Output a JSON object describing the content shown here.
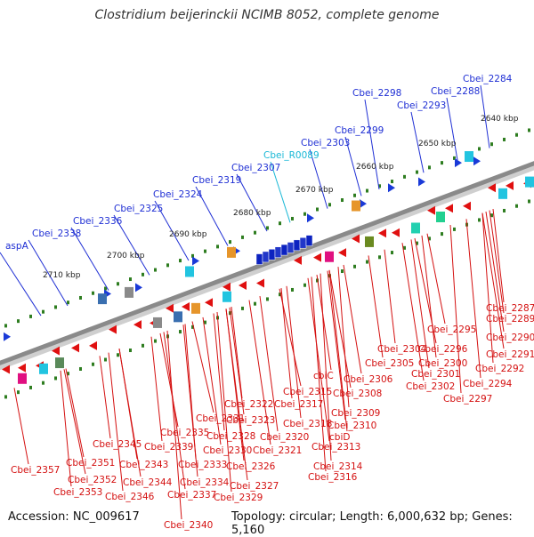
{
  "title": "Clostridium beijerinckii NCIMB 8052, complete genome",
  "footer": {
    "accession": "Accession: NC_009617",
    "summary": "Topology: circular; Length: 6,000,632 bp; Genes: 5,160"
  },
  "kbp_labels": [
    "2640 kbp",
    "2650 kbp",
    "2660 kbp",
    "2670 kbp",
    "2680 kbp",
    "2690 kbp",
    "2700 kbp",
    "2710 kbp"
  ],
  "forward_labels": [
    {
      "text": "Cbei_2284",
      "color": "blue"
    },
    {
      "text": "Cbei_2288",
      "color": "blue"
    },
    {
      "text": "Cbei_2293",
      "color": "blue"
    },
    {
      "text": "Cbei_2298",
      "color": "blue"
    },
    {
      "text": "Cbei_2299",
      "color": "blue"
    },
    {
      "text": "Cbei_2303",
      "color": "blue"
    },
    {
      "text": "Cbei_R0089",
      "color": "cyan"
    },
    {
      "text": "Cbei_2307",
      "color": "blue"
    },
    {
      "text": "Cbei_2319",
      "color": "blue"
    },
    {
      "text": "Cbei_2324",
      "color": "blue"
    },
    {
      "text": "Cbei_2325",
      "color": "blue"
    },
    {
      "text": "Cbei_2336",
      "color": "blue"
    },
    {
      "text": "Cbei_2338",
      "color": "blue"
    },
    {
      "text": "aspA",
      "color": "blue"
    }
  ],
  "reverse_labels": [
    "Cbei_2287",
    "Cbei_2289",
    "Cbei_2290",
    "Cbei_2291",
    "Cbei_2292",
    "Cbei_2294",
    "Cbei_2295",
    "Cbei_2296",
    "Cbei_2297",
    "Cbei_2300",
    "Cbei_2301",
    "Cbei_2302",
    "Cbei_2304",
    "Cbei_2305",
    "Cbei_2306",
    "Cbei_2308",
    "Cbei_2309",
    "cbiC",
    "Cbei_2310",
    "Cbei_2315",
    "Cbei_2317",
    "Cbei_2318",
    "cbiD",
    "Cbei_2313",
    "Cbei_2314",
    "Cbei_2316",
    "Cbei_2320",
    "Cbei_2321",
    "Cbei_2322",
    "Cbei_2323",
    "Cbei_2326",
    "Cbei_2327",
    "Cbei_2328",
    "Cbei_2329",
    "Cbei_2330",
    "Cbei_2331",
    "Cbei_2333",
    "Cbei_2334",
    "Cbei_2335",
    "Cbei_2337",
    "Cbei_2339",
    "Cbei_2340",
    "Cbei_2343",
    "Cbei_2344",
    "Cbei_2345",
    "Cbei_2346",
    "Cbei_2351",
    "Cbei_2352",
    "Cbei_2353",
    "Cbei_2357"
  ],
  "colors": {
    "backbone": "#8a8a8a",
    "forward_cds": "#1a3ad8",
    "reverse_cds": "#e01010",
    "rna": "#22b8d8",
    "tick": "#2e7d20",
    "label_blue": "#1f2fd4",
    "label_red": "#d41010"
  }
}
